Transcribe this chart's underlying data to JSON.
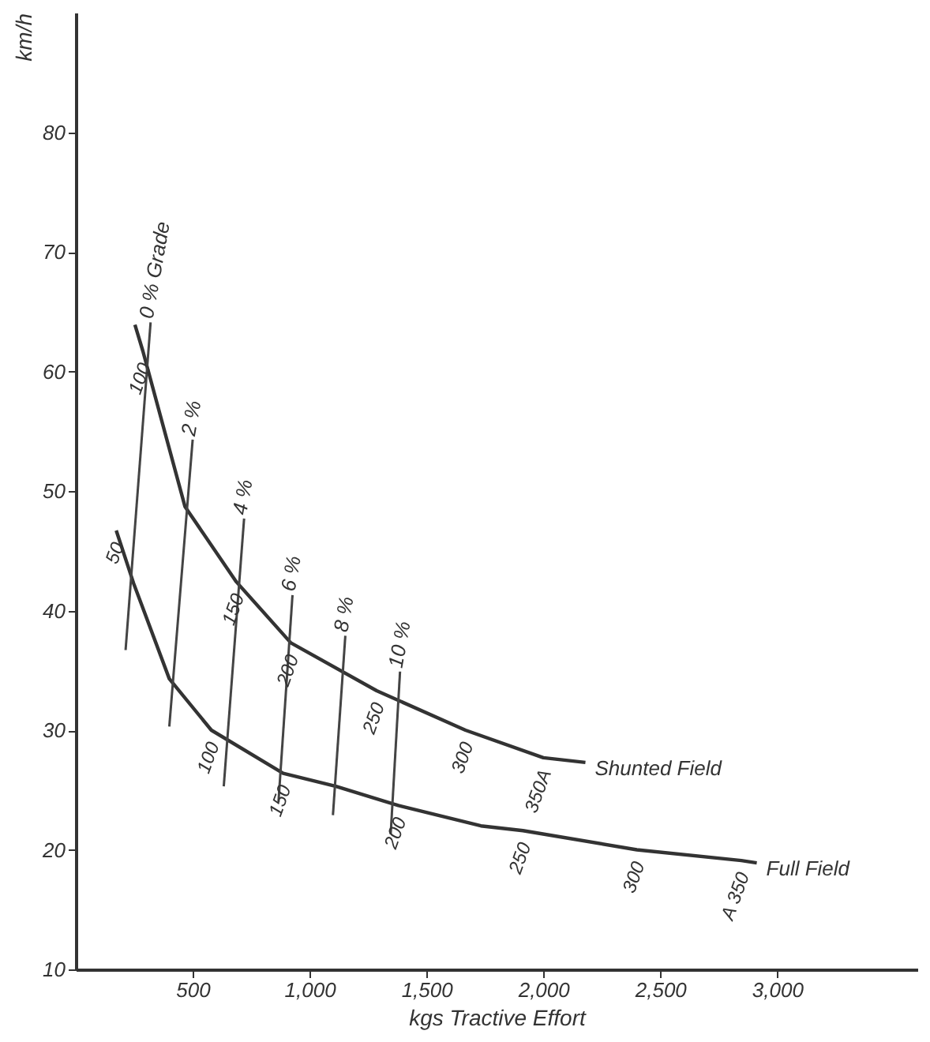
{
  "chart_data": {
    "type": "line",
    "xlabel": "kgs  Tractive Effort",
    "ylabel": "km/h",
    "xlim": [
      0,
      3600
    ],
    "ylim": [
      10,
      90
    ],
    "xticks": [
      {
        "value": 500,
        "label": "500"
      },
      {
        "value": 1000,
        "label": "1,000"
      },
      {
        "value": 1500,
        "label": "1,500"
      },
      {
        "value": 2000,
        "label": "2,000"
      },
      {
        "value": 2500,
        "label": "2,500"
      },
      {
        "value": 3000,
        "label": "3,000"
      }
    ],
    "yticks": [
      10,
      20,
      30,
      40,
      50,
      60,
      70,
      80
    ],
    "grid": false,
    "marker": "none",
    "line_style": "solid",
    "series": [
      {
        "name": "Shunted Field",
        "color": "#333333",
        "x": [
          253,
          287,
          467,
          687,
          920,
          1287,
          1667,
          2000,
          2180
        ],
        "values": [
          63.9,
          61.7,
          48.7,
          42.4,
          37.3,
          33.3,
          30.0,
          27.7,
          27.3
        ]
      },
      {
        "name": "Full Field",
        "color": "#333333",
        "x": [
          173,
          247,
          400,
          580,
          887,
          1113,
          1380,
          1733,
          1913,
          2400,
          2847,
          2913
        ],
        "values": [
          46.7,
          42.3,
          34.3,
          30.0,
          26.4,
          25.3,
          23.7,
          22.0,
          21.6,
          20.0,
          19.1,
          18.9
        ]
      },
      {
        "name": "0 % Grade",
        "color": "#444444",
        "x": [
          213,
          320
        ],
        "values": [
          36.7,
          64.1
        ]
      },
      {
        "name": "2 %",
        "color": "#444444",
        "x": [
          400,
          500
        ],
        "values": [
          30.3,
          54.3
        ]
      },
      {
        "name": "4 %",
        "color": "#444444",
        "x": [
          633,
          720
        ],
        "values": [
          25.3,
          47.7
        ]
      },
      {
        "name": "6 %",
        "color": "#444444",
        "x": [
          867,
          927
        ],
        "values": [
          24.0,
          41.3
        ]
      },
      {
        "name": "8 %",
        "color": "#444444",
        "x": [
          1100,
          1153
        ],
        "values": [
          22.9,
          37.9
        ]
      },
      {
        "name": "10 %",
        "color": "#444444",
        "x": [
          1347,
          1387
        ],
        "values": [
          21.3,
          34.9
        ]
      }
    ],
    "annotations": [
      {
        "text": "100",
        "x": 287,
        "y": 61.7
      },
      {
        "text": "150",
        "x": 687,
        "y": 42.4
      },
      {
        "text": "200",
        "x": 920,
        "y": 37.3
      },
      {
        "text": "250",
        "x": 1287,
        "y": 33.3
      },
      {
        "text": "300",
        "x": 1667,
        "y": 30.0
      },
      {
        "text": "350A",
        "x": 2000,
        "y": 27.7
      },
      {
        "text": "50",
        "x": 173,
        "y": 46.7
      },
      {
        "text": "100",
        "x": 580,
        "y": 30.0
      },
      {
        "text": "150",
        "x": 887,
        "y": 26.4
      },
      {
        "text": "200",
        "x": 1380,
        "y": 23.7
      },
      {
        "text": "250",
        "x": 1913,
        "y": 21.6
      },
      {
        "text": "300",
        "x": 2400,
        "y": 20.0
      },
      {
        "text": "A 350",
        "x": 2847,
        "y": 19.1
      }
    ]
  }
}
